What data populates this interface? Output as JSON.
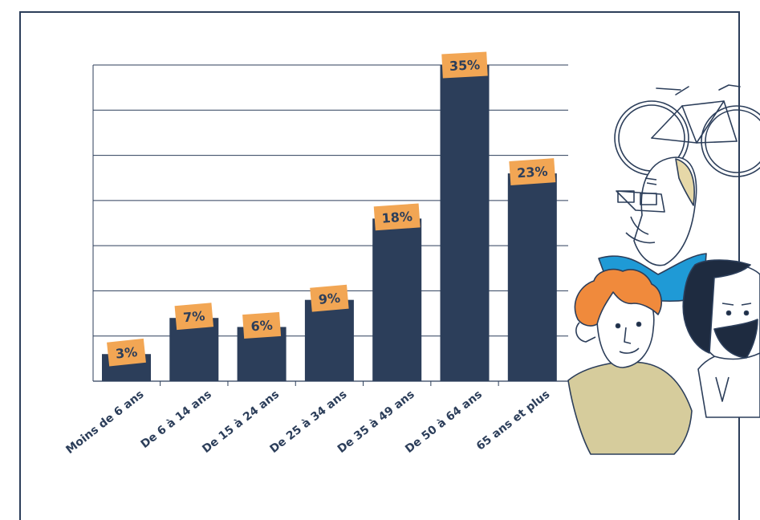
{
  "colors": {
    "bar": "#2c3e5a",
    "label_box": "#f2a654",
    "label_text": "#2c3e5a",
    "grid": "#2c3e5a",
    "frame": "#2c3e5a",
    "illustration_line": "#2c3e5a",
    "shirt_blue": "#1f9ad6",
    "shirt_beige": "#d6cc9c",
    "hair_orange": "#f08a3c",
    "hair_dark": "#1e2b40",
    "skin_bald": "#e6d8a8"
  },
  "illustration": {
    "icons": [
      "bicycle-icon",
      "elderly-man-icon",
      "young-man-icon",
      "bearded-man-icon"
    ]
  },
  "chart_data": {
    "type": "bar",
    "categories": [
      "Moins de 6 ans",
      "De 6 à 14 ans",
      "De 15 à 24 ans",
      "De 25 à 34 ans",
      "De 35 à 49 ans",
      "De 50 à 64 ans",
      "65 ans et plus"
    ],
    "values": [
      3,
      7,
      6,
      9,
      18,
      35,
      23
    ],
    "labels": [
      "3%",
      "7%",
      "6%",
      "9%",
      "18%",
      "35%",
      "23%"
    ],
    "ylim": [
      0,
      35
    ],
    "ytick_step": 5,
    "grid": true,
    "title": "",
    "xlabel": "",
    "ylabel": ""
  }
}
